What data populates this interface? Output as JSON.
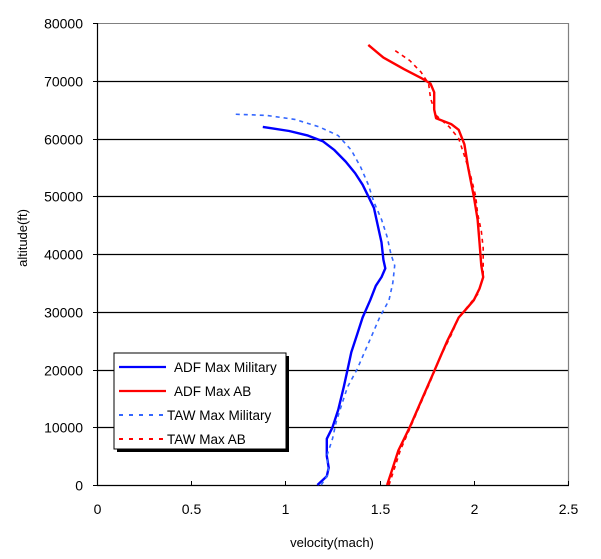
{
  "chart_data": {
    "type": "line",
    "title": "",
    "xlabel": "velocity(mach)",
    "ylabel": "altitude(ft)",
    "xlim": [
      0,
      2.5
    ],
    "ylim": [
      0,
      80000
    ],
    "x_ticks": [
      "0",
      "0.5",
      "1",
      "1.5",
      "2",
      "2.5"
    ],
    "y_ticks": [
      "0",
      "10000",
      "20000",
      "30000",
      "40000",
      "50000",
      "60000",
      "70000",
      "80000"
    ],
    "grid": {
      "horizontal": true,
      "vertical": false
    },
    "legend_position": "lower-left inside",
    "series": [
      {
        "name": "ADF Max Military",
        "color": "#0000ff",
        "style": "solid",
        "points": [
          [
            1.17,
            0
          ],
          [
            1.22,
            1500
          ],
          [
            1.23,
            3000
          ],
          [
            1.22,
            5000
          ],
          [
            1.22,
            8000
          ],
          [
            1.25,
            10000
          ],
          [
            1.28,
            13000
          ],
          [
            1.31,
            17000
          ],
          [
            1.33,
            20000
          ],
          [
            1.35,
            23000
          ],
          [
            1.38,
            26000
          ],
          [
            1.41,
            29000
          ],
          [
            1.45,
            32000
          ],
          [
            1.48,
            34500
          ],
          [
            1.51,
            36000
          ],
          [
            1.53,
            37500
          ],
          [
            1.52,
            39000
          ],
          [
            1.51,
            42000
          ],
          [
            1.49,
            45000
          ],
          [
            1.47,
            48000
          ],
          [
            1.44,
            50000
          ],
          [
            1.41,
            52000
          ],
          [
            1.37,
            54000
          ],
          [
            1.32,
            56000
          ],
          [
            1.26,
            58000
          ],
          [
            1.2,
            59500
          ],
          [
            1.12,
            60500
          ],
          [
            1.02,
            61300
          ],
          [
            0.88,
            62000
          ]
        ]
      },
      {
        "name": "ADF Max AB",
        "color": "#ff0000",
        "style": "solid",
        "points": [
          [
            1.54,
            0
          ],
          [
            1.57,
            3000
          ],
          [
            1.6,
            6000
          ],
          [
            1.63,
            8000
          ],
          [
            1.66,
            10000
          ],
          [
            1.7,
            13000
          ],
          [
            1.74,
            16000
          ],
          [
            1.78,
            19000
          ],
          [
            1.82,
            22000
          ],
          [
            1.86,
            25000
          ],
          [
            1.89,
            27000
          ],
          [
            1.92,
            29000
          ],
          [
            1.96,
            30500
          ],
          [
            2.0,
            32000
          ],
          [
            2.03,
            34000
          ],
          [
            2.05,
            36000
          ],
          [
            2.04,
            38000
          ],
          [
            2.03,
            42000
          ],
          [
            2.02,
            46000
          ],
          [
            2.0,
            50000
          ],
          [
            1.97,
            55000
          ],
          [
            1.95,
            59000
          ],
          [
            1.92,
            61500
          ],
          [
            1.88,
            62500
          ],
          [
            1.8,
            63500
          ],
          [
            1.79,
            65000
          ],
          [
            1.79,
            68000
          ],
          [
            1.77,
            69500
          ],
          [
            1.72,
            70500
          ],
          [
            1.63,
            72000
          ],
          [
            1.52,
            74000
          ],
          [
            1.44,
            76200
          ]
        ]
      },
      {
        "name": "TAW Max Military",
        "color": "#3366ff",
        "style": "dashed",
        "points": [
          [
            1.19,
            0
          ],
          [
            1.23,
            2000
          ],
          [
            1.22,
            5000
          ],
          [
            1.25,
            8000
          ],
          [
            1.27,
            11000
          ],
          [
            1.3,
            14000
          ],
          [
            1.33,
            17000
          ],
          [
            1.38,
            20000
          ],
          [
            1.42,
            23000
          ],
          [
            1.46,
            26000
          ],
          [
            1.5,
            29000
          ],
          [
            1.55,
            32000
          ],
          [
            1.57,
            35000
          ],
          [
            1.58,
            38000
          ],
          [
            1.56,
            40000
          ],
          [
            1.54,
            43000
          ],
          [
            1.51,
            46000
          ],
          [
            1.47,
            49000
          ],
          [
            1.44,
            52000
          ],
          [
            1.4,
            55000
          ],
          [
            1.35,
            58000
          ],
          [
            1.28,
            60500
          ],
          [
            1.18,
            62000
          ],
          [
            1.05,
            63300
          ],
          [
            0.9,
            64000
          ],
          [
            0.73,
            64200
          ]
        ]
      },
      {
        "name": "TAW Max AB",
        "color": "#ff0000",
        "style": "dashed",
        "points": [
          [
            1.55,
            0
          ],
          [
            1.58,
            3000
          ],
          [
            1.61,
            6000
          ],
          [
            1.65,
            9000
          ],
          [
            1.69,
            12000
          ],
          [
            1.73,
            15000
          ],
          [
            1.77,
            18000
          ],
          [
            1.82,
            22000
          ],
          [
            1.88,
            26000
          ],
          [
            1.92,
            29000
          ],
          [
            1.97,
            31000
          ],
          [
            2.02,
            33000
          ],
          [
            2.05,
            36000
          ],
          [
            2.05,
            38000
          ],
          [
            2.05,
            41000
          ],
          [
            2.04,
            44000
          ],
          [
            2.02,
            47000
          ],
          [
            2.01,
            50000
          ],
          [
            1.98,
            54000
          ],
          [
            1.95,
            57000
          ],
          [
            1.92,
            60000
          ],
          [
            1.87,
            62000
          ],
          [
            1.8,
            64000
          ],
          [
            1.77,
            67000
          ],
          [
            1.76,
            69500
          ],
          [
            1.72,
            71500
          ],
          [
            1.66,
            73500
          ],
          [
            1.57,
            75500
          ]
        ]
      }
    ]
  }
}
